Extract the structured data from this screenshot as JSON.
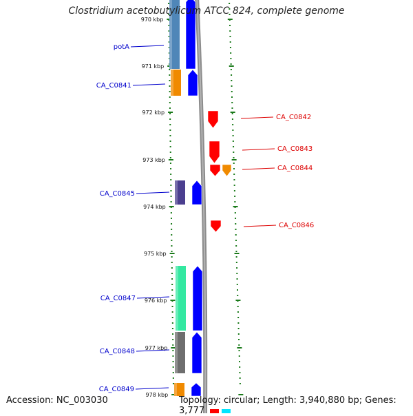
{
  "title": "Clostridium acetobutylicum ATCC 824, complete genome",
  "footer": {
    "accession": "Accession: NC_003030",
    "summary": "Topology: circular; Length: 3,940,880 bp; Genes: 3,777"
  },
  "colors": {
    "background": "#ffffff",
    "tick": "#1a7a1a",
    "backbone": "#8c8c8c",
    "label_left": "#0000cc",
    "label_right": "#dd0000"
  },
  "scale": {
    "ticks": [
      "970 kbp",
      "971 kbp",
      "972 kbp",
      "973 kbp",
      "974 kbp",
      "975 kbp",
      "976 kbp",
      "977 kbp",
      "978 kbp"
    ]
  },
  "genes": [
    {
      "name": "potA",
      "strand": "left",
      "cog_color": "#4f86b8",
      "arrow_color": "#0000ff"
    },
    {
      "name": "CA_C0841",
      "strand": "left",
      "cog_color": "#f08a00",
      "arrow_color": "#0000ff"
    },
    {
      "name": "CA_C0842",
      "strand": "right",
      "cog_color": "#ff0000"
    },
    {
      "name": "CA_C0843",
      "strand": "right",
      "cog_color": "#ff0000"
    },
    {
      "name": "CA_C0844",
      "strand": "right",
      "cog_color": "#ff0000",
      "extra_color": "#f08a00"
    },
    {
      "name": "CA_C0845",
      "strand": "left",
      "cog_color": "#4b3f8f",
      "arrow_color": "#0000ff"
    },
    {
      "name": "CA_C0846",
      "strand": "right",
      "cog_color": "#ff0000"
    },
    {
      "name": "CA_C0847",
      "strand": "left",
      "cog_color": "#33e8a0",
      "arrow_color": "#0000ff"
    },
    {
      "name": "CA_C0848",
      "strand": "left",
      "cog_color": "#6e6e6e",
      "arrow_color": "#0000ff"
    },
    {
      "name": "CA_C0849",
      "strand": "left",
      "cog_color": "#f08a00",
      "arrow_color": "#0000ff"
    }
  ]
}
